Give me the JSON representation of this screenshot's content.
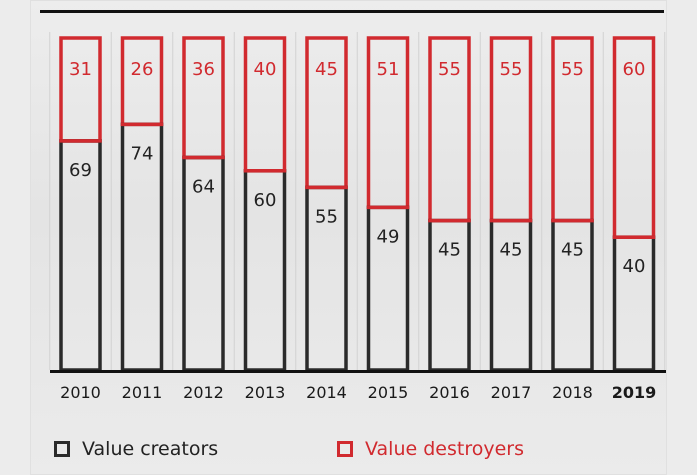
{
  "chart_data": {
    "type": "bar",
    "stacked": true,
    "categories": [
      "2010",
      "2011",
      "2012",
      "2013",
      "2014",
      "2015",
      "2016",
      "2017",
      "2018",
      "2019"
    ],
    "highlight_category": "2019",
    "series": [
      {
        "name": "Value creators",
        "values": [
          69,
          74,
          64,
          60,
          55,
          49,
          45,
          45,
          45,
          40
        ],
        "color": "#2a2a2a"
      },
      {
        "name": "Value destroyers",
        "values": [
          31,
          26,
          36,
          40,
          45,
          51,
          55,
          55,
          55,
          60
        ],
        "color": "#d12a2f"
      }
    ],
    "ylim": [
      0,
      100
    ],
    "grid": true,
    "legend_position": "bottom"
  },
  "legend": {
    "creators_label": "Value creators",
    "destroyers_label": "Value destroyers"
  }
}
